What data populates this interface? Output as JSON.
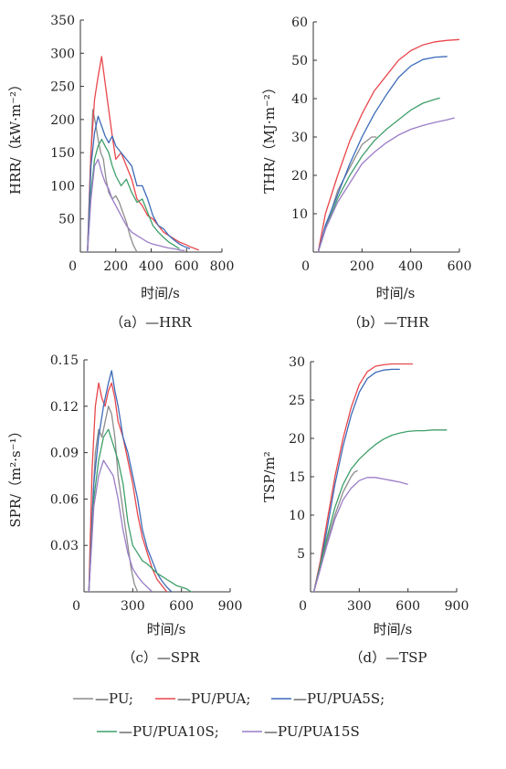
{
  "colors": {
    "PU": "#8c8c8c",
    "PU/PUA": "#e8474c",
    "PU/PUA5S": "#3c6bb8",
    "PU/PUA10S": "#3f9f6a",
    "PU/PUA15S": "#9a7cc6"
  },
  "legend": {
    "items": [
      {
        "series": "PU",
        "label": "—PU;"
      },
      {
        "series": "PU/PUA",
        "label": "—PU/PUA;"
      },
      {
        "series": "PU/PUA5S",
        "label": "—PU/PUA5S;"
      },
      {
        "series": "PU/PUA10S",
        "label": "—PU/PUA10S;"
      },
      {
        "series": "PU/PUA15S",
        "label": "—PU/PUA15S"
      }
    ]
  },
  "chart_data": [
    {
      "id": "hrr",
      "type": "line",
      "caption": "（a）—HRR",
      "xlabel": "时间/s",
      "ylabel": "HRR/（kW·m⁻²）",
      "xlim": [
        0,
        800
      ],
      "ylim": [
        0,
        350
      ],
      "xticks": [
        "0",
        "200",
        "400",
        "600",
        "800"
      ],
      "yticks": [
        "50",
        "100",
        "150",
        "200",
        "250",
        "300",
        "350"
      ],
      "series": [
        {
          "name": "PU",
          "x": [
            40,
            55,
            70,
            85,
            100,
            115,
            130,
            145,
            160,
            180,
            200,
            220,
            240,
            260,
            280,
            300,
            320
          ],
          "y": [
            0,
            120,
            215,
            195,
            170,
            150,
            140,
            110,
            90,
            80,
            85,
            75,
            60,
            45,
            25,
            10,
            0
          ]
        },
        {
          "name": "PU/PUA",
          "x": [
            40,
            60,
            80,
            100,
            120,
            140,
            160,
            180,
            200,
            230,
            260,
            290,
            320,
            350,
            380,
            410,
            440,
            470,
            500,
            530,
            560,
            590,
            620,
            650,
            670
          ],
          "y": [
            0,
            150,
            230,
            265,
            295,
            255,
            215,
            175,
            140,
            150,
            130,
            110,
            80,
            70,
            55,
            50,
            40,
            30,
            25,
            20,
            15,
            12,
            8,
            5,
            3
          ]
        },
        {
          "name": "PU/PUA5S",
          "x": [
            40,
            60,
            80,
            100,
            120,
            140,
            160,
            180,
            200,
            230,
            260,
            290,
            320,
            350,
            380,
            410,
            440,
            470,
            500,
            530,
            560,
            590,
            620
          ],
          "y": [
            0,
            130,
            180,
            205,
            190,
            175,
            165,
            175,
            160,
            150,
            140,
            130,
            100,
            100,
            80,
            55,
            40,
            35,
            25,
            18,
            12,
            8,
            5
          ]
        },
        {
          "name": "PU/PUA10S",
          "x": [
            40,
            60,
            80,
            100,
            120,
            140,
            160,
            180,
            200,
            230,
            260,
            290,
            320,
            350,
            380,
            410,
            440,
            470,
            500,
            530,
            560
          ],
          "y": [
            0,
            90,
            140,
            160,
            170,
            160,
            150,
            130,
            115,
            100,
            110,
            90,
            75,
            80,
            60,
            40,
            30,
            22,
            15,
            10,
            5
          ]
        },
        {
          "name": "PU/PUA15S",
          "x": [
            40,
            60,
            80,
            100,
            120,
            140,
            160,
            180,
            200,
            230,
            260,
            290,
            320,
            350,
            380,
            410,
            440,
            470,
            500,
            530,
            560,
            590
          ],
          "y": [
            0,
            80,
            130,
            140,
            120,
            105,
            95,
            80,
            70,
            55,
            40,
            30,
            25,
            20,
            15,
            12,
            10,
            8,
            6,
            5,
            3,
            2
          ]
        }
      ]
    },
    {
      "id": "thr",
      "type": "line",
      "caption": "（b）—THR",
      "xlabel": "时间/s",
      "ylabel": "THR/（MJ·m⁻²）",
      "xlim": [
        0,
        600
      ],
      "ylim": [
        0,
        60
      ],
      "xticks": [
        "0",
        "200",
        "400",
        "600"
      ],
      "yticks": [
        "10",
        "20",
        "30",
        "40",
        "50",
        "60"
      ],
      "series": [
        {
          "name": "PU",
          "x": [
            20,
            50,
            100,
            150,
            200,
            240,
            260
          ],
          "y": [
            0,
            6,
            16,
            22,
            28,
            30,
            30
          ]
        },
        {
          "name": "PU/PUA",
          "x": [
            20,
            50,
            100,
            150,
            200,
            250,
            300,
            350,
            400,
            450,
            500,
            550,
            600
          ],
          "y": [
            0,
            10,
            20,
            29,
            36,
            42,
            46,
            50,
            52.5,
            54,
            54.8,
            55.2,
            55.4
          ]
        },
        {
          "name": "PU/PUA5S",
          "x": [
            20,
            50,
            100,
            150,
            200,
            250,
            300,
            350,
            400,
            450,
            500,
            550
          ],
          "y": [
            0,
            7,
            15,
            23,
            30,
            36,
            41,
            45.5,
            48.5,
            50.2,
            50.8,
            51
          ]
        },
        {
          "name": "PU/PUA10S",
          "x": [
            20,
            50,
            100,
            150,
            200,
            250,
            300,
            350,
            400,
            450,
            500,
            520
          ],
          "y": [
            0,
            6,
            14,
            20,
            25,
            29,
            32,
            34.5,
            37,
            38.8,
            39.8,
            40.2
          ]
        },
        {
          "name": "PU/PUA15S",
          "x": [
            20,
            50,
            100,
            150,
            200,
            250,
            300,
            350,
            400,
            450,
            500,
            550,
            580
          ],
          "y": [
            0,
            6,
            13,
            18,
            23,
            26,
            28.5,
            30.5,
            32,
            33,
            33.8,
            34.5,
            35
          ]
        }
      ]
    },
    {
      "id": "spr",
      "type": "line",
      "caption": "（c）—SPR",
      "xlabel": "时间/s",
      "ylabel": "SPR/（m²·s⁻¹）",
      "xlim": [
        0,
        900
      ],
      "ylim": [
        0,
        0.15
      ],
      "xticks": [
        "0",
        "300",
        "600",
        "900"
      ],
      "yticks": [
        "0.03",
        "0.06",
        "0.09",
        "0.12",
        "0.15"
      ],
      "series": [
        {
          "name": "PU",
          "x": [
            30,
            50,
            70,
            90,
            110,
            130,
            150,
            170,
            190,
            210,
            230,
            250,
            270,
            290,
            310,
            330
          ],
          "y": [
            0,
            0.05,
            0.09,
            0.105,
            0.1,
            0.11,
            0.12,
            0.115,
            0.1,
            0.075,
            0.06,
            0.045,
            0.03,
            0.015,
            0.005,
            0
          ]
        },
        {
          "name": "PU/PUA",
          "x": [
            30,
            50,
            70,
            90,
            110,
            130,
            150,
            170,
            190,
            210,
            240,
            270,
            300,
            330,
            360,
            390,
            420,
            450,
            480,
            510
          ],
          "y": [
            0,
            0.08,
            0.12,
            0.135,
            0.125,
            0.12,
            0.13,
            0.135,
            0.125,
            0.11,
            0.1,
            0.085,
            0.07,
            0.05,
            0.035,
            0.025,
            0.015,
            0.008,
            0.004,
            0
          ]
        },
        {
          "name": "PU/PUA5S",
          "x": [
            30,
            60,
            90,
            120,
            150,
            170,
            190,
            210,
            240,
            270,
            300,
            330,
            360,
            390,
            420,
            450,
            480,
            510,
            540
          ],
          "y": [
            0,
            0.07,
            0.1,
            0.12,
            0.135,
            0.143,
            0.13,
            0.12,
            0.1,
            0.09,
            0.075,
            0.06,
            0.04,
            0.028,
            0.02,
            0.012,
            0.007,
            0.003,
            0
          ]
        },
        {
          "name": "PU/PUA10S",
          "x": [
            30,
            60,
            90,
            120,
            150,
            180,
            210,
            240,
            270,
            300,
            330,
            360,
            390,
            420,
            450,
            480,
            510,
            540,
            570,
            600,
            630,
            660
          ],
          "y": [
            0,
            0.06,
            0.085,
            0.1,
            0.105,
            0.095,
            0.085,
            0.07,
            0.045,
            0.03,
            0.025,
            0.02,
            0.018,
            0.015,
            0.012,
            0.01,
            0.008,
            0.006,
            0.004,
            0.003,
            0.002,
            0
          ]
        },
        {
          "name": "PU/PUA15S",
          "x": [
            30,
            60,
            90,
            120,
            150,
            180,
            210,
            240,
            270,
            300,
            330,
            360,
            390,
            420
          ],
          "y": [
            0,
            0.055,
            0.075,
            0.085,
            0.08,
            0.075,
            0.06,
            0.04,
            0.025,
            0.015,
            0.01,
            0.006,
            0.003,
            0
          ]
        }
      ]
    },
    {
      "id": "tsp",
      "type": "line",
      "caption": "（d）—TSP",
      "xlabel": "时间/s",
      "ylabel": "TSP/m²",
      "xlim": [
        0,
        900
      ],
      "ylim": [
        0,
        30
      ],
      "xticks": [
        "0",
        "300",
        "600",
        "900"
      ],
      "yticks": [
        "5",
        "10",
        "15",
        "20",
        "25",
        "30"
      ],
      "series": [
        {
          "name": "PU",
          "x": [
            20,
            60,
            100,
            150,
            200,
            250,
            270,
            290
          ],
          "y": [
            0,
            3,
            6.5,
            10,
            13,
            15,
            15.6,
            15.8
          ]
        },
        {
          "name": "PU/PUA",
          "x": [
            20,
            60,
            100,
            150,
            200,
            250,
            300,
            350,
            400,
            450,
            500,
            550,
            600,
            630
          ],
          "y": [
            0,
            4,
            9,
            15,
            20,
            24,
            27,
            28.7,
            29.4,
            29.6,
            29.7,
            29.7,
            29.7,
            29.7
          ]
        },
        {
          "name": "PU/PUA5S",
          "x": [
            20,
            60,
            100,
            150,
            200,
            250,
            300,
            350,
            400,
            450,
            500,
            550
          ],
          "y": [
            0,
            3.5,
            8,
            14,
            19,
            23,
            26,
            27.8,
            28.6,
            28.9,
            29,
            29
          ]
        },
        {
          "name": "PU/PUA10S",
          "x": [
            20,
            60,
            100,
            150,
            200,
            250,
            300,
            350,
            400,
            450,
            500,
            550,
            600,
            650,
            700,
            750,
            800,
            840
          ],
          "y": [
            0,
            3.5,
            7,
            11,
            14,
            16,
            17.3,
            18.3,
            19.2,
            19.9,
            20.4,
            20.7,
            20.9,
            21,
            21,
            21.1,
            21.1,
            21.1
          ]
        },
        {
          "name": "PU/PUA15S",
          "x": [
            20,
            60,
            100,
            150,
            200,
            250,
            300,
            350,
            400,
            450,
            500,
            550,
            600
          ],
          "y": [
            0,
            3,
            6,
            9.5,
            12,
            13.5,
            14.5,
            14.9,
            14.9,
            14.7,
            14.5,
            14.3,
            14
          ]
        }
      ]
    }
  ]
}
